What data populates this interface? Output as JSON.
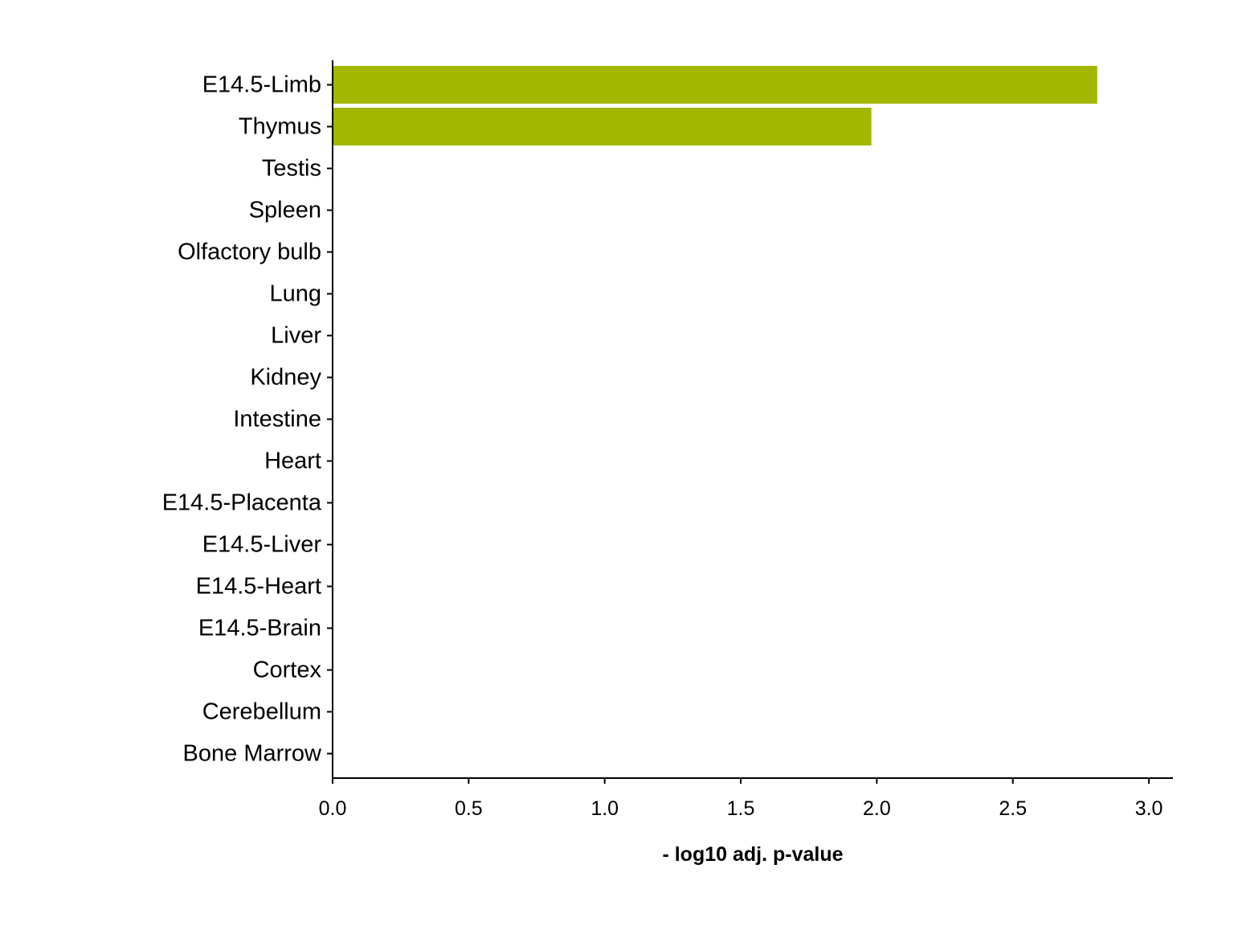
{
  "chart_data": {
    "type": "bar",
    "orientation": "horizontal",
    "categories": [
      "E14.5-Limb",
      "Thymus",
      "Testis",
      "Spleen",
      "Olfactory bulb",
      "Lung",
      "Liver",
      "Kidney",
      "Intestine",
      "Heart",
      "E14.5-Placenta",
      "E14.5-Liver",
      "E14.5-Heart",
      "E14.5-Brain",
      "Cortex",
      "Cerebellum",
      "Bone Marrow"
    ],
    "values": [
      2.81,
      1.98,
      0,
      0,
      0,
      0,
      0,
      0,
      0,
      0,
      0,
      0,
      0,
      0,
      0,
      0,
      0
    ],
    "bar_color": "#a2b700",
    "xlabel": "- log10 adj. p-value",
    "ylabel": "",
    "title": "",
    "xlim": [
      0,
      3.08
    ],
    "xticks": [
      0,
      0.5,
      1,
      1.5,
      2,
      2.5,
      3
    ],
    "xtick_labels": [
      "0.0",
      "0.5",
      "1.0",
      "1.5",
      "2.0",
      "2.5",
      "3.0"
    ],
    "grid": false,
    "legend": "none"
  }
}
